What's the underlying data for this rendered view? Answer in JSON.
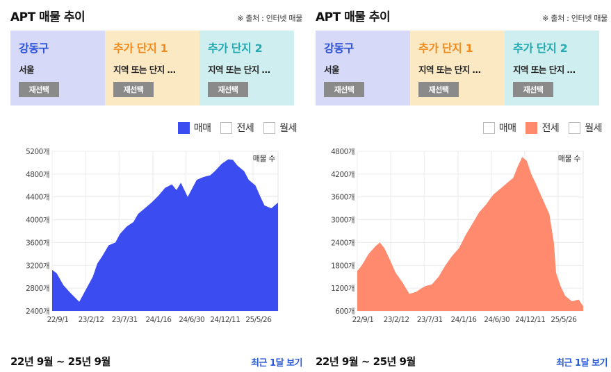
{
  "panels": [
    {
      "title": "APT 매물 추이",
      "source": "※ 출처 : 인터넷 매물",
      "cards": [
        {
          "title": "강동구",
          "sub": "서울",
          "button": "재선택",
          "title_color": "#2f54d6",
          "bg": "#d6d9f7"
        },
        {
          "title": "추가 단지 1",
          "sub": "지역 또는 단지 …",
          "button": "재선택",
          "title_color": "#f28a1b",
          "bg": "#fbe9c4"
        },
        {
          "title": "추가 단지 2",
          "sub": "지역 또는 단지 …",
          "button": "재선택",
          "title_color": "#23aab0",
          "bg": "#cfeef0"
        }
      ],
      "legend": [
        {
          "label": "매매",
          "checked": true,
          "color": "#3b4cf0"
        },
        {
          "label": "전세",
          "checked": false,
          "color": "#ff8a6e"
        },
        {
          "label": "월세",
          "checked": false,
          "color": "#999999"
        }
      ],
      "period": "22년 9월 ~ 25년 9월",
      "recent_link": "최근 1달 보기"
    },
    {
      "title": "APT 매물 추이",
      "source": "※ 출처 : 인터넷 매물",
      "cards": [
        {
          "title": "강동구",
          "sub": "서울",
          "button": "재선택",
          "title_color": "#2f54d6",
          "bg": "#d6d9f7"
        },
        {
          "title": "추가 단지 1",
          "sub": "지역 또는 단지 …",
          "button": "재선택",
          "title_color": "#f28a1b",
          "bg": "#fbe9c4"
        },
        {
          "title": "추가 단지 2",
          "sub": "지역 또는 단지 …",
          "button": "재선택",
          "title_color": "#23aab0",
          "bg": "#cfeef0"
        }
      ],
      "legend": [
        {
          "label": "매매",
          "checked": false,
          "color": "#3b4cf0"
        },
        {
          "label": "전세",
          "checked": true,
          "color": "#ff8a6e"
        },
        {
          "label": "월세",
          "checked": false,
          "color": "#999999"
        }
      ],
      "period": "22년 9월 ~ 25년 9월",
      "recent_link": "최근 1달 보기"
    }
  ],
  "chart_data": [
    {
      "type": "area",
      "series_name": "매매",
      "label": "매물 수",
      "color": "#3b4cf0",
      "ylim": [
        2400,
        5200
      ],
      "y_ticks": [
        2400,
        2800,
        3200,
        3600,
        4000,
        4400,
        4800,
        5200
      ],
      "y_tick_labels": [
        "2400개",
        "2800개",
        "3200개",
        "3600개",
        "4000개",
        "4400개",
        "4800개",
        "5200개"
      ],
      "x_tick_labels": [
        "22/9/1",
        "23/2/12",
        "23/7/31",
        "24/1/16",
        "24/6/30",
        "24/12/11",
        "25/5/26"
      ],
      "x_ticks_frac": [
        0,
        0.148,
        0.296,
        0.446,
        0.593,
        0.741,
        0.889
      ],
      "x_frac": [
        0,
        0.02,
        0.05,
        0.08,
        0.1,
        0.12,
        0.15,
        0.18,
        0.2,
        0.22,
        0.25,
        0.28,
        0.3,
        0.33,
        0.36,
        0.38,
        0.41,
        0.44,
        0.47,
        0.5,
        0.53,
        0.55,
        0.57,
        0.6,
        0.62,
        0.64,
        0.67,
        0.7,
        0.72,
        0.75,
        0.78,
        0.8,
        0.82,
        0.85,
        0.87,
        0.9,
        0.92,
        0.94,
        0.97,
        1.0
      ],
      "values": [
        3120,
        3060,
        2850,
        2720,
        2640,
        2560,
        2780,
        3000,
        3230,
        3350,
        3550,
        3600,
        3750,
        3880,
        3960,
        4100,
        4200,
        4300,
        4420,
        4560,
        4620,
        4520,
        4650,
        4400,
        4550,
        4700,
        4750,
        4780,
        4850,
        4980,
        5060,
        5050,
        4950,
        4850,
        4700,
        4600,
        4420,
        4250,
        4200,
        4300
      ]
    },
    {
      "type": "area",
      "series_name": "전세",
      "label": "매물 수",
      "color": "#ff8a6e",
      "ylim": [
        600,
        4800
      ],
      "y_ticks": [
        600,
        1200,
        1800,
        2400,
        3000,
        3600,
        4200,
        4800
      ],
      "y_tick_labels": [
        "600개",
        "1200개",
        "1800개",
        "2400개",
        "3000개",
        "3600개",
        "4200개",
        "4800개"
      ],
      "x_tick_labels": [
        "22/9/1",
        "23/2/12",
        "23/7/31",
        "24/1/16",
        "24/6/30",
        "24/12/11",
        "25/5/26"
      ],
      "x_ticks_frac": [
        0,
        0.148,
        0.296,
        0.446,
        0.593,
        0.741,
        0.889
      ],
      "x_frac": [
        0,
        0.02,
        0.05,
        0.08,
        0.1,
        0.12,
        0.14,
        0.17,
        0.2,
        0.23,
        0.26,
        0.28,
        0.3,
        0.33,
        0.36,
        0.39,
        0.42,
        0.45,
        0.48,
        0.51,
        0.54,
        0.57,
        0.6,
        0.63,
        0.66,
        0.69,
        0.71,
        0.73,
        0.75,
        0.77,
        0.79,
        0.82,
        0.85,
        0.87,
        0.88,
        0.9,
        0.92,
        0.95,
        0.98,
        1.0
      ],
      "values": [
        1650,
        1800,
        2100,
        2300,
        2400,
        2250,
        2000,
        1600,
        1350,
        1050,
        1100,
        1180,
        1250,
        1300,
        1500,
        1800,
        2050,
        2250,
        2600,
        2900,
        3200,
        3400,
        3650,
        3800,
        3950,
        4100,
        4400,
        4650,
        4550,
        4200,
        3950,
        3550,
        3150,
        2400,
        1600,
        1250,
        1000,
        850,
        900,
        720
      ]
    }
  ]
}
